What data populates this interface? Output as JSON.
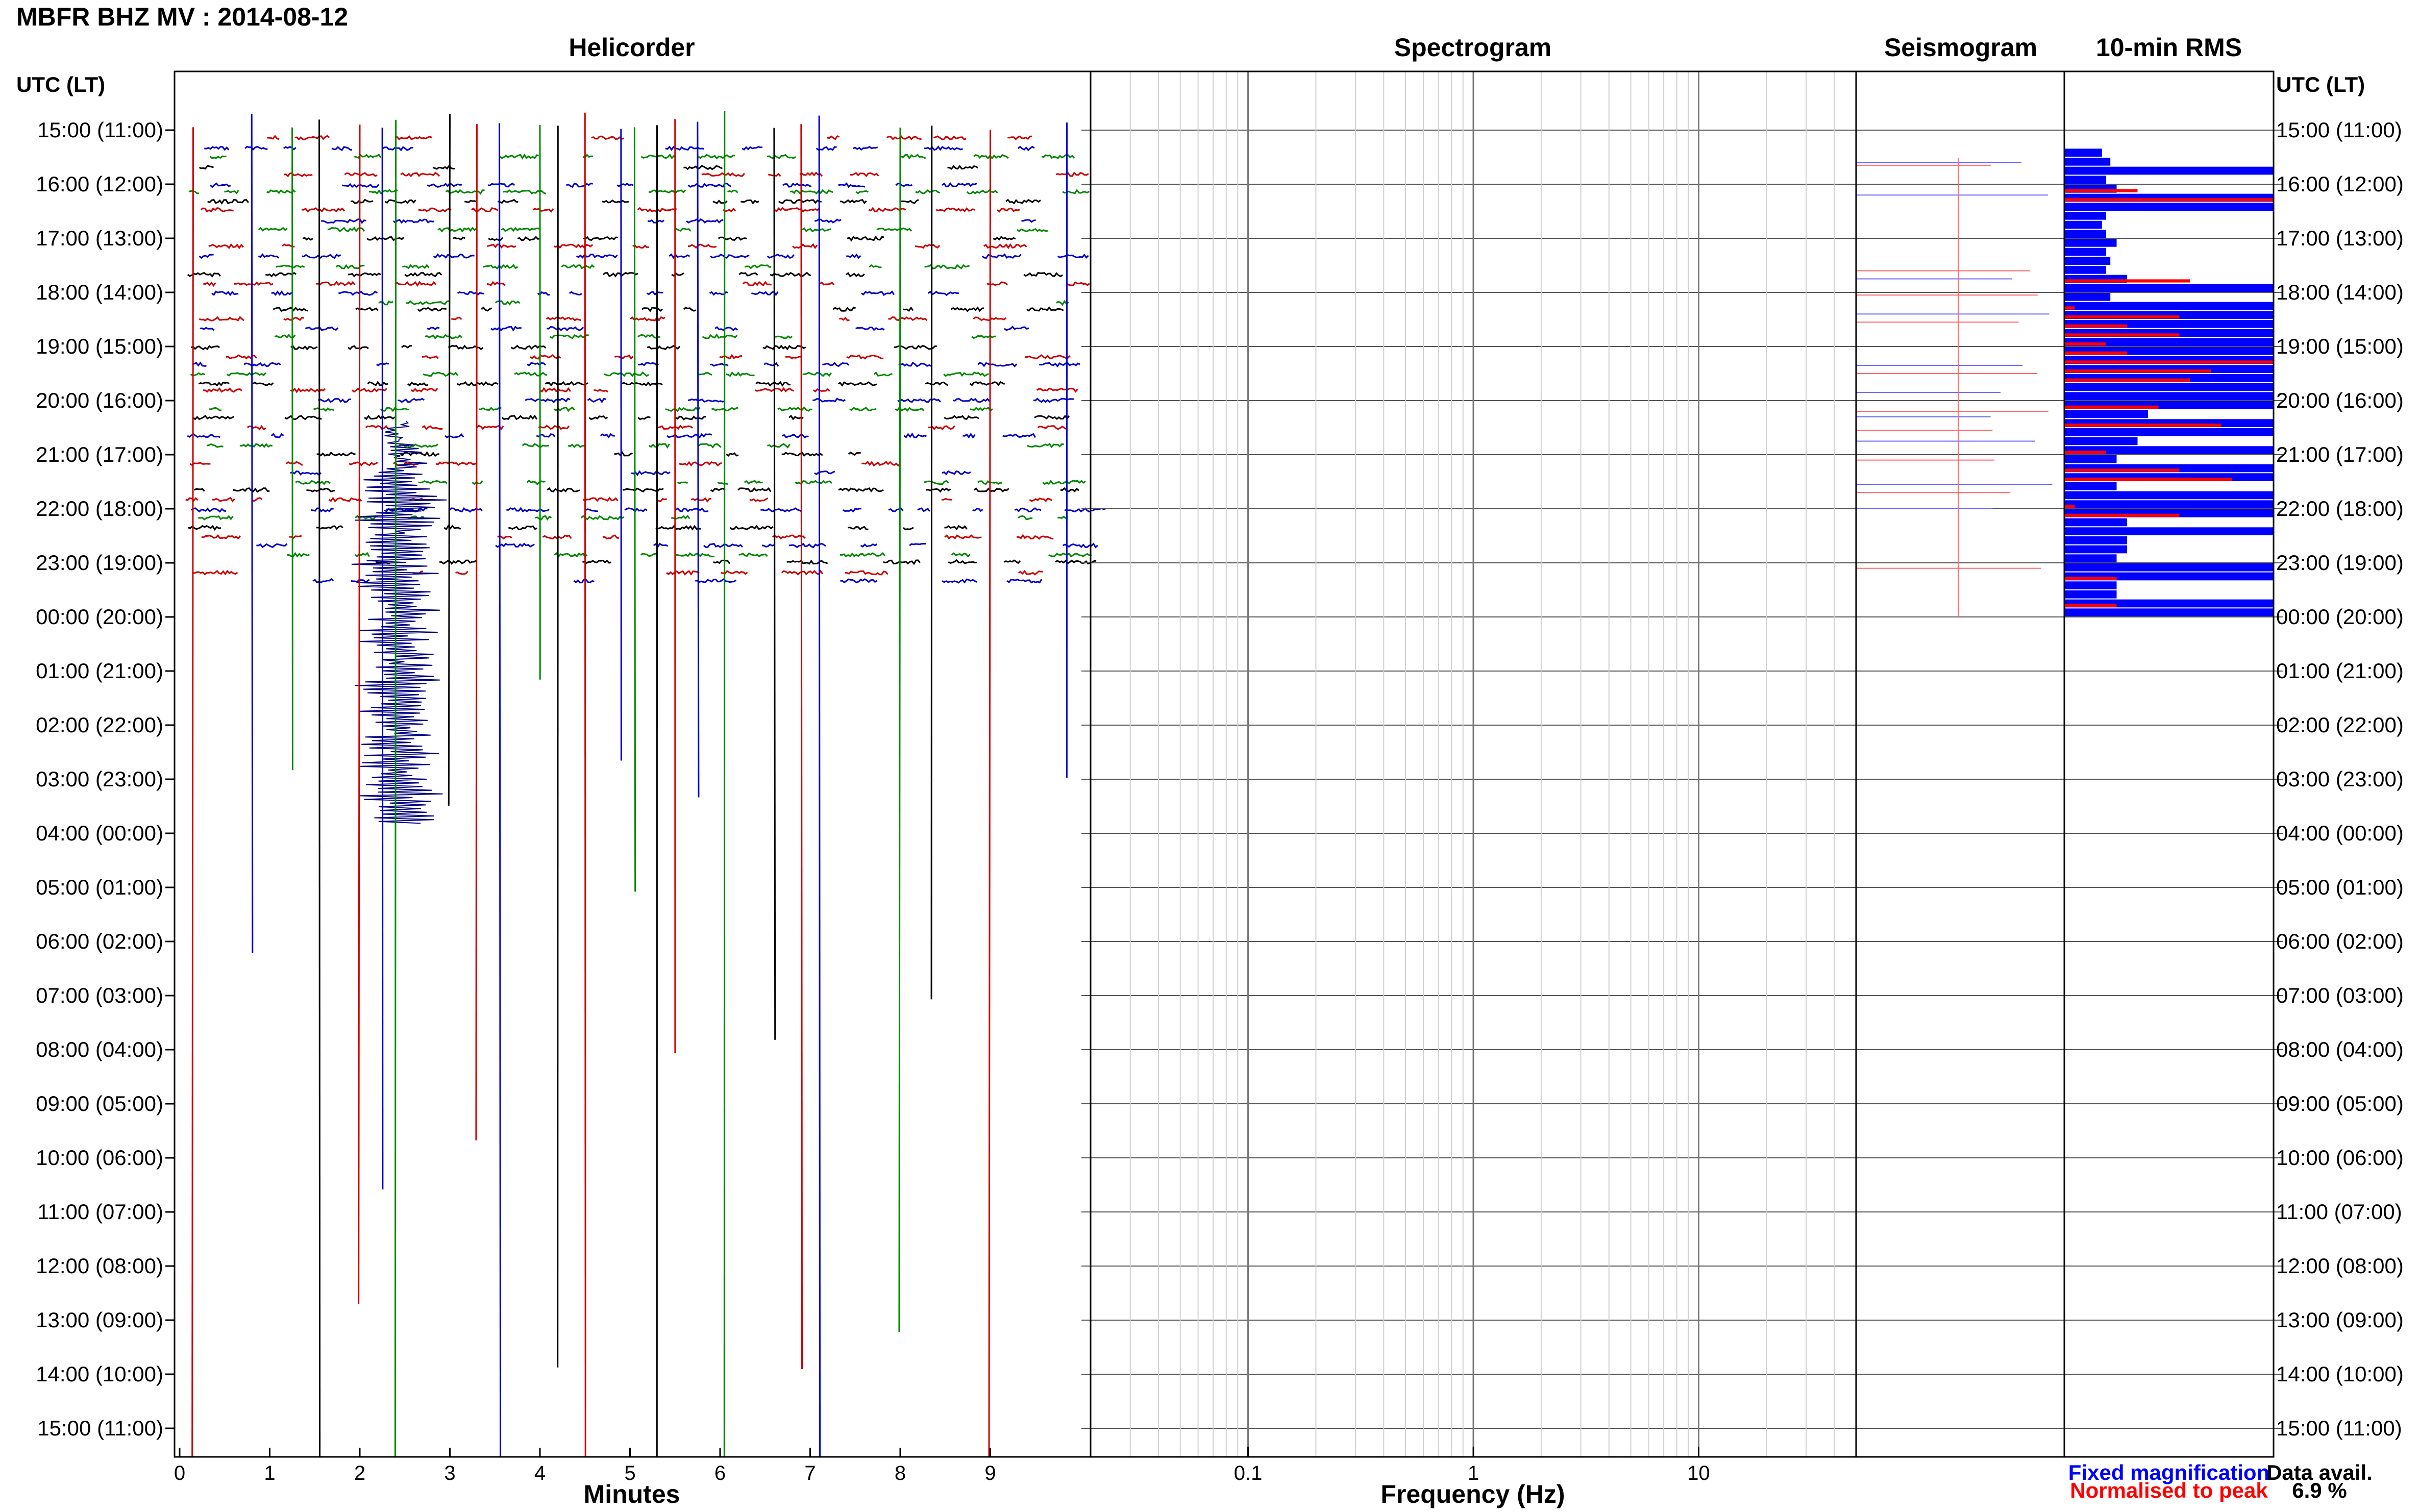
{
  "title": "MBFR BHZ MV : 2014-08-12",
  "headers": {
    "helicorder": "Helicorder",
    "spectrogram": "Spectrogram",
    "seismogram": "Seismogram",
    "rms": "10-min RMS"
  },
  "time_axis_label": "UTC (LT)",
  "time_labels": [
    "15:00 (11:00)",
    "16:00 (12:00)",
    "17:00 (13:00)",
    "18:00 (14:00)",
    "19:00 (15:00)",
    "20:00 (16:00)",
    "21:00 (17:00)",
    "22:00 (18:00)",
    "23:00 (19:00)",
    "00:00 (20:00)",
    "01:00 (21:00)",
    "02:00 (22:00)",
    "03:00 (23:00)",
    "04:00 (00:00)",
    "05:00 (01:00)",
    "06:00 (02:00)",
    "07:00 (03:00)",
    "08:00 (04:00)",
    "09:00 (05:00)",
    "10:00 (06:00)",
    "11:00 (07:00)",
    "12:00 (08:00)",
    "13:00 (09:00)",
    "14:00 (10:00)",
    "15:00 (11:00)"
  ],
  "minutes_axis": {
    "label": "Minutes",
    "ticks": [
      "0",
      "1",
      "2",
      "3",
      "4",
      "5",
      "6",
      "7",
      "8",
      "9"
    ]
  },
  "frequency_axis": {
    "label": "Frequency (Hz)",
    "ticks": [
      "0.1",
      "1",
      "10"
    ],
    "scale": "log"
  },
  "legend": {
    "fixed": "Fixed magnification",
    "fixed_color": "#0000ff",
    "normalised": "Normalised to peak",
    "normalised_color": "#ff0000"
  },
  "data_avail": {
    "label": "Data avail.",
    "value": "6.9 %"
  },
  "colors": {
    "trace_cycle": [
      "#000000",
      "#cc0000",
      "#0000cc",
      "#008800"
    ],
    "rms_fixed": "#0000ff",
    "rms_normalised": "#ff0000"
  },
  "chart_data": [
    {
      "type": "line",
      "title": "Helicorder",
      "xlabel": "Minutes",
      "xlim": [
        0,
        10
      ],
      "rows_utc": [
        "15:00",
        "16:00",
        "17:00",
        "18:00",
        "19:00",
        "20:00",
        "21:00",
        "22:00",
        "23:00",
        "00:00",
        "01:00",
        "02:00",
        "03:00",
        "04:00",
        "05:00",
        "06:00",
        "07:00",
        "08:00",
        "09:00",
        "10:00",
        "11:00",
        "12:00",
        "13:00",
        "14:00",
        "15:00"
      ],
      "data_interval_utc": [
        "15:30",
        "00:00"
      ],
      "vertical_spikes_minutes": [
        0.15,
        0.8,
        1.25,
        1.55,
        2.0,
        2.25,
        2.4,
        3.0,
        3.3,
        3.55,
        4.0,
        4.2,
        4.5,
        4.9,
        5.05,
        5.3,
        5.5,
        5.75,
        6.05,
        6.6,
        6.9,
        7.1,
        8.0,
        8.35,
        9.0,
        9.85
      ]
    },
    {
      "type": "heatmap",
      "title": "Spectrogram",
      "xlabel": "Frequency (Hz)",
      "xscale": "log",
      "xlim": [
        0.02,
        50
      ],
      "xticks": [
        0.1,
        1,
        10
      ]
    },
    {
      "type": "bar",
      "title": "10-min RMS",
      "orientation": "horizontal",
      "start_utc": "15:00",
      "interval_minutes": 10,
      "series": [
        {
          "name": "Fixed magnification",
          "values": [
            0,
            0,
            0.18,
            0.22,
            1,
            0.2,
            0.25,
            1,
            1,
            0.2,
            0.18,
            0.2,
            0.25,
            0.2,
            0.22,
            0.2,
            0.3,
            1,
            0.22,
            1,
            1,
            1,
            1,
            1,
            1,
            1,
            1,
            1,
            1,
            1,
            1,
            0.4,
            1,
            1,
            0.35,
            1,
            0.25,
            1,
            1,
            0.25,
            1,
            1,
            1,
            0.3,
            1,
            0.3,
            0.3,
            0.25,
            1,
            1,
            0.25,
            0.25,
            1,
            1
          ]
        },
        {
          "name": "Normalised to peak",
          "values": [
            0,
            0,
            0,
            0,
            0,
            0,
            0.35,
            1,
            0,
            0,
            0,
            0,
            0,
            0,
            0,
            0,
            0.6,
            0,
            0,
            0.05,
            0.55,
            0.3,
            0.55,
            0.2,
            0.3,
            1,
            0.7,
            0.6,
            0,
            0,
            0.45,
            0,
            0.75,
            0,
            0,
            0.2,
            0,
            0.55,
            0.8,
            0,
            0,
            0.05,
            0.55,
            0,
            0,
            0,
            0,
            0,
            0,
            0.25,
            0,
            0,
            0.25,
            0
          ]
        }
      ]
    }
  ]
}
